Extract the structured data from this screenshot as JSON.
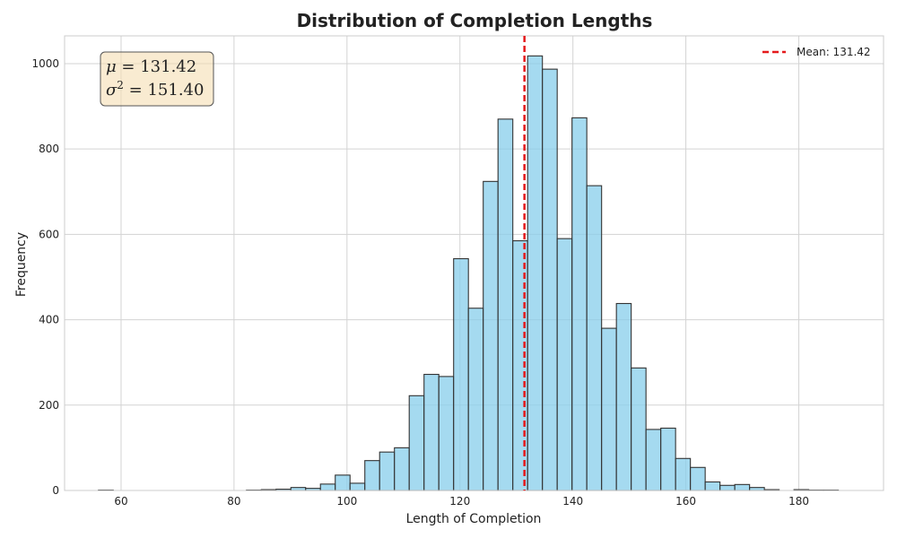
{
  "chart_data": {
    "type": "bar",
    "title": "Distribution of Completion Lengths",
    "xlabel": "Length of Completion",
    "ylabel": "Frequency",
    "xlim": [
      50,
      195
    ],
    "ylim": [
      0,
      1065
    ],
    "xticks": [
      60,
      80,
      100,
      120,
      140,
      160,
      180
    ],
    "yticks": [
      0,
      200,
      400,
      600,
      800,
      1000
    ],
    "grid": true,
    "bin_width": 2.62,
    "bin_edges_start": 56.0,
    "values": [
      1,
      0,
      0,
      0,
      0,
      0,
      0,
      0,
      0,
      0,
      1,
      2,
      3,
      7,
      5,
      15,
      36,
      17,
      70,
      90,
      100,
      222,
      272,
      267,
      543,
      427,
      724,
      870,
      585,
      1018,
      987,
      590,
      873,
      714,
      380,
      438,
      287,
      143,
      146,
      75,
      54,
      20,
      12,
      14,
      7,
      2,
      0,
      2,
      1,
      1
    ],
    "bar_color": "#87CEEB",
    "edge_color": "#333333",
    "mean_line": {
      "value": 131.42,
      "color": "#e41a1c",
      "legend_label": "Mean: 131.42"
    },
    "legend_position": "top-right",
    "stats_box": {
      "mu_symbol": "μ",
      "mu_value": " = 131.42",
      "sigma_symbol": "σ",
      "sigma_exp": "2",
      "sigma_value": " = 151.40",
      "position": "top-left",
      "bg": "#f5deb3"
    }
  }
}
